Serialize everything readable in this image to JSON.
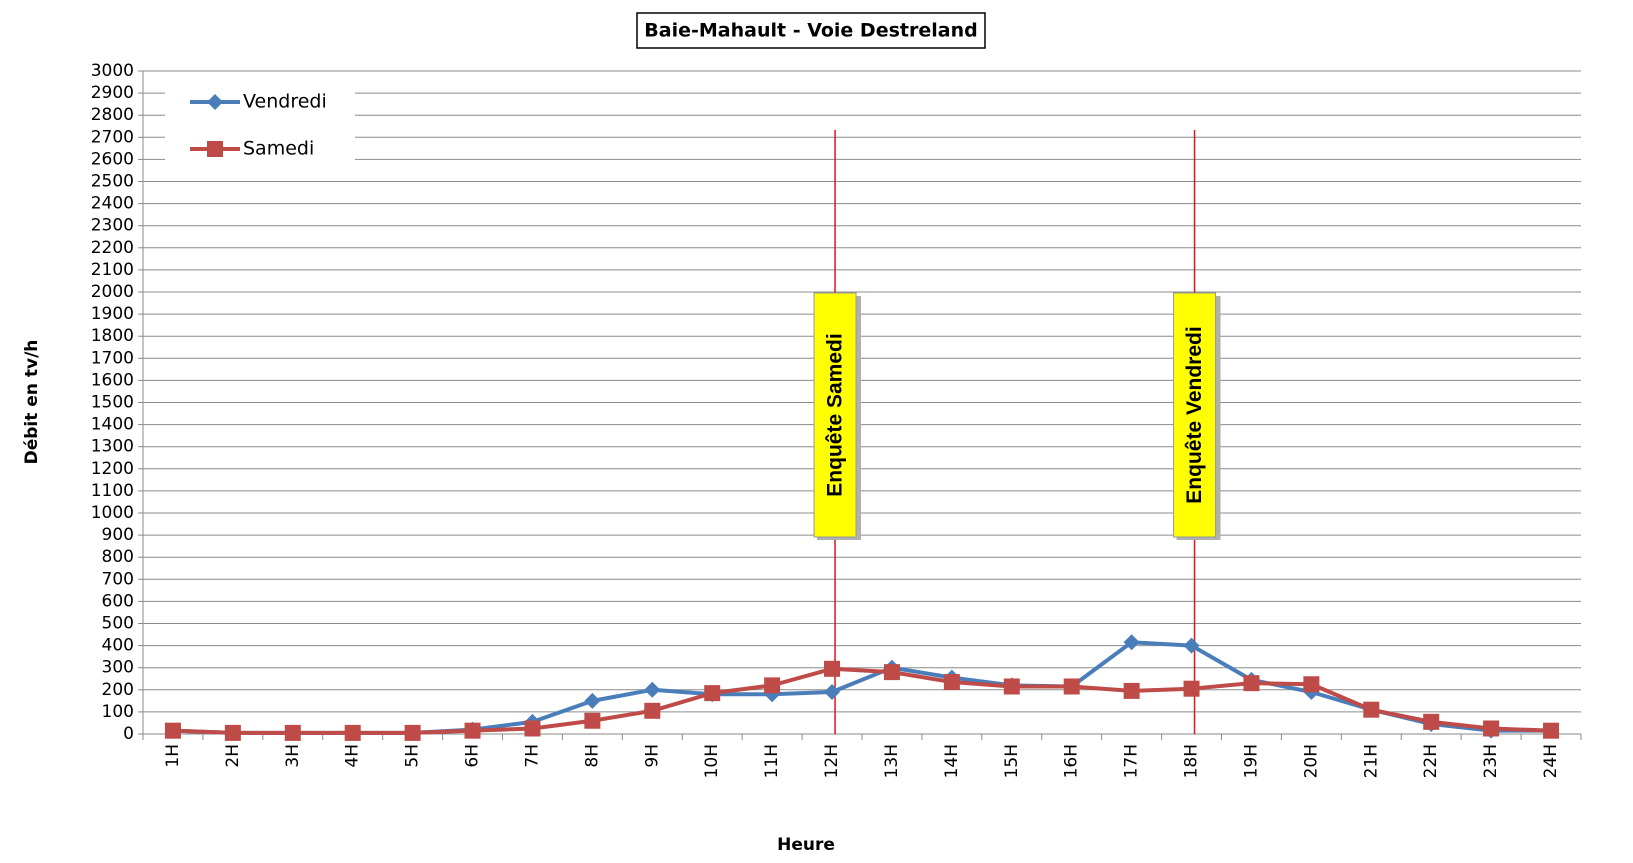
{
  "chart_data": {
    "type": "line",
    "title": "Baie-Mahault - Voie Destreland",
    "x_label": "Heure",
    "y_label": "Débit en tv/h",
    "categories": [
      "1H",
      "2H",
      "3H",
      "4H",
      "5H",
      "6H",
      "7H",
      "8H",
      "9H",
      "10H",
      "11H",
      "12H",
      "13H",
      "14H",
      "15H",
      "16H",
      "17H",
      "18H",
      "19H",
      "20H",
      "21H",
      "22H",
      "23H",
      "24H"
    ],
    "series": [
      {
        "name": "Vendredi",
        "color": "#4a7ebb",
        "marker": "diamond",
        "values": [
          15,
          5,
          5,
          5,
          5,
          20,
          55,
          150,
          200,
          180,
          180,
          190,
          300,
          255,
          220,
          215,
          415,
          400,
          245,
          190,
          110,
          45,
          15,
          15
        ]
      },
      {
        "name": "Samedi",
        "color": "#be4b48",
        "marker": "square",
        "values": [
          15,
          5,
          5,
          5,
          5,
          15,
          25,
          60,
          105,
          185,
          220,
          295,
          280,
          235,
          215,
          215,
          195,
          205,
          230,
          225,
          110,
          55,
          25,
          15
        ]
      }
    ],
    "ylim": [
      0,
      3000
    ],
    "yticks": [
      0,
      100,
      200,
      300,
      400,
      500,
      600,
      700,
      800,
      900,
      1000,
      1100,
      1200,
      1300,
      1400,
      1500,
      1600,
      1700,
      1800,
      1900,
      2000,
      2100,
      2200,
      2300,
      2400,
      2500,
      2600,
      2700,
      2800,
      2900,
      3000
    ],
    "grid": true,
    "legend": "top-left",
    "annotations": [
      {
        "text": "Enquête Samedi",
        "x": "12H",
        "color": "#e0161b"
      },
      {
        "text": "Enquête Vendredi",
        "x": "18H",
        "color": "#e0161b"
      }
    ]
  }
}
